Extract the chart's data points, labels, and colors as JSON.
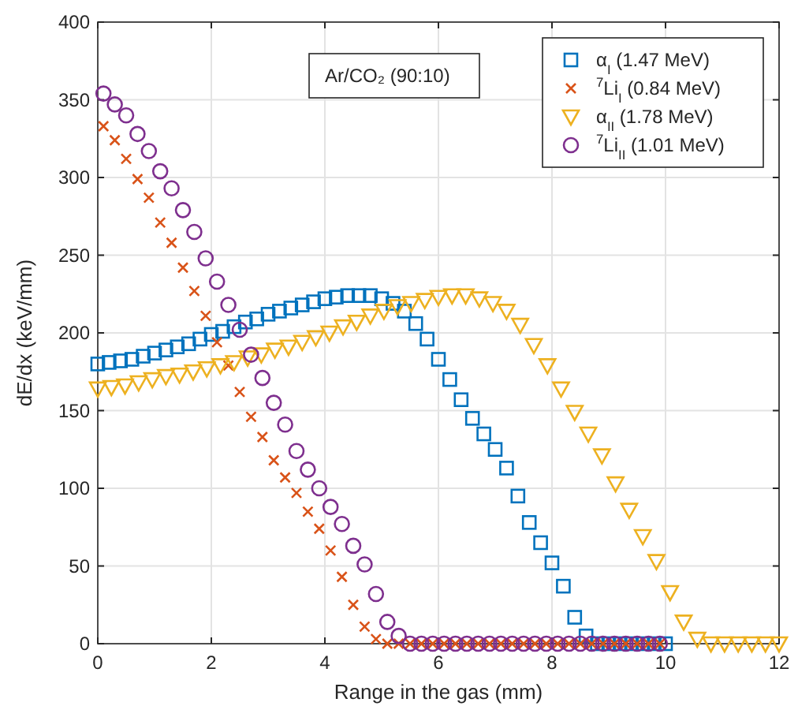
{
  "chart_data": {
    "type": "scatter",
    "xlabel": "Range in the gas (mm)",
    "ylabel": "dE/dx (keV/mm)",
    "xlim": [
      0,
      12
    ],
    "ylim": [
      0,
      400
    ],
    "xticks": [
      0,
      2,
      4,
      6,
      8,
      10,
      12
    ],
    "yticks": [
      0,
      50,
      100,
      150,
      200,
      250,
      300,
      350,
      400
    ],
    "grid": true,
    "legend": "top right",
    "annotations": [
      "Ar/CO₂ (90:10)"
    ],
    "series": [
      {
        "name": "α$_{I}$ (1.47 MeV)",
        "color": "#0072bd",
        "marker": "square",
        "x": [
          0,
          0.2,
          0.4,
          0.6,
          0.8,
          1,
          1.2,
          1.4,
          1.6,
          1.8,
          2,
          2.2,
          2.4,
          2.6,
          2.8,
          3,
          3.2,
          3.4,
          3.6,
          3.8,
          4,
          4.2,
          4.4,
          4.6,
          4.8,
          5,
          5.2,
          5.4,
          5.6,
          5.8,
          6,
          6.2,
          6.4,
          6.6,
          6.8,
          7,
          7.2,
          7.4,
          7.6,
          7.8,
          8,
          8.2,
          8.4,
          8.6,
          8.8,
          9,
          9.2,
          9.4,
          9.6,
          9.8,
          10
        ],
        "values": [
          180,
          181,
          182,
          183,
          185,
          187,
          189,
          191,
          193,
          196,
          199,
          201,
          204,
          207,
          209,
          212,
          214,
          216,
          218,
          220,
          222,
          223,
          224,
          224,
          224,
          222,
          219,
          214,
          206,
          196,
          183,
          170,
          157,
          145,
          135,
          125,
          113,
          95,
          78,
          65,
          52,
          37,
          17,
          5,
          0,
          0,
          0,
          0,
          0,
          0,
          0
        ]
      },
      {
        "name": "$^{7}$Li$_{I}$ (0.84 MeV)",
        "color": "#d95319",
        "marker": "cross",
        "x": [
          0.1,
          0.3,
          0.5,
          0.7,
          0.9,
          1.1,
          1.3,
          1.5,
          1.7,
          1.9,
          2.1,
          2.3,
          2.5,
          2.7,
          2.9,
          3.1,
          3.3,
          3.5,
          3.7,
          3.9,
          4.1,
          4.3,
          4.5,
          4.7,
          4.9,
          5.1,
          5.3,
          5.5,
          5.7,
          5.9,
          6.1,
          6.3,
          6.5,
          6.7,
          6.9,
          7.1,
          7.3,
          7.5,
          7.7,
          7.9,
          8.1,
          8.3,
          8.5,
          8.7,
          8.9,
          9.1,
          9.3,
          9.5,
          9.7,
          9.9
        ],
        "values": [
          333,
          324,
          312,
          299,
          287,
          271,
          258,
          242,
          227,
          211,
          194,
          179,
          162,
          146,
          133,
          118,
          107,
          97,
          85,
          74,
          60,
          43,
          25,
          11,
          3,
          0,
          0,
          0,
          0,
          0,
          0,
          0,
          0,
          0,
          0,
          0,
          0,
          0,
          0,
          0,
          0,
          0,
          0,
          0,
          0,
          0,
          0,
          0,
          0,
          0
        ]
      },
      {
        "name": "α$_{II}$ (1.78 MeV)",
        "color": "#edb120",
        "marker": "triangle",
        "x": [
          0,
          0.24,
          0.48,
          0.72,
          0.96,
          1.2,
          1.44,
          1.68,
          1.92,
          2.16,
          2.4,
          2.64,
          2.88,
          3.12,
          3.36,
          3.6,
          3.84,
          4.08,
          4.32,
          4.56,
          4.8,
          5.04,
          5.28,
          5.52,
          5.76,
          6,
          6.24,
          6.48,
          6.72,
          6.96,
          7.2,
          7.44,
          7.68,
          7.92,
          8.16,
          8.4,
          8.64,
          8.88,
          9.12,
          9.36,
          9.6,
          9.84,
          10.08,
          10.32,
          10.56,
          10.8,
          11.04,
          11.28,
          11.52,
          11.76,
          12
        ],
        "values": [
          164,
          165,
          166,
          168,
          170,
          172,
          173,
          175,
          177,
          179,
          181,
          184,
          186,
          189,
          191,
          194,
          197,
          200,
          204,
          207,
          211,
          214,
          217,
          219,
          221,
          223,
          224,
          224,
          222,
          219,
          214,
          205,
          192,
          179,
          164,
          149,
          135,
          121,
          103,
          86,
          69,
          53,
          33,
          14,
          3,
          0,
          0,
          0,
          0,
          0,
          0
        ]
      },
      {
        "name": "$^{7}$Li$_{II}$ (1.01 MeV)",
        "color": "#7e2f8e",
        "marker": "circle",
        "x": [
          0.1,
          0.3,
          0.5,
          0.7,
          0.9,
          1.1,
          1.3,
          1.5,
          1.7,
          1.9,
          2.1,
          2.3,
          2.5,
          2.7,
          2.9,
          3.1,
          3.3,
          3.5,
          3.7,
          3.9,
          4.1,
          4.3,
          4.5,
          4.7,
          4.9,
          5.1,
          5.3,
          5.5,
          5.7,
          5.9,
          6.1,
          6.3,
          6.5,
          6.7,
          6.9,
          7.1,
          7.3,
          7.5,
          7.7,
          7.9,
          8.1,
          8.3,
          8.5,
          8.7,
          8.9,
          9.1,
          9.3,
          9.5,
          9.7,
          9.9
        ],
        "values": [
          354,
          347,
          340,
          328,
          317,
          304,
          293,
          279,
          265,
          248,
          233,
          218,
          202,
          186,
          171,
          155,
          141,
          124,
          112,
          100,
          88,
          77,
          63,
          51,
          32,
          14,
          5,
          0,
          0,
          0,
          0,
          0,
          0,
          0,
          0,
          0,
          0,
          0,
          0,
          0,
          0,
          0,
          0,
          0,
          0,
          0,
          0,
          0,
          0,
          0
        ]
      }
    ]
  }
}
